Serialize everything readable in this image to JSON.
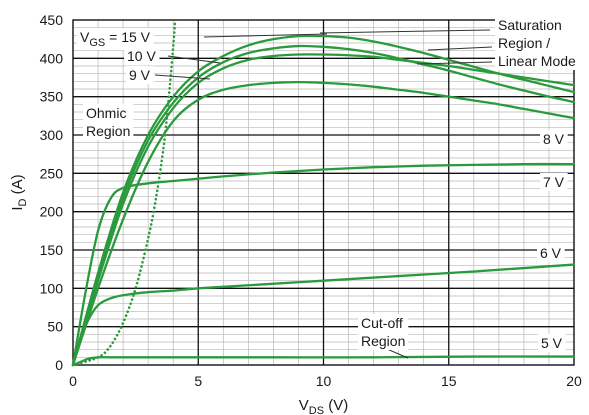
{
  "chart_data": {
    "type": "line",
    "title": "",
    "xlabel": {
      "main": "V",
      "sub": "DS",
      "unit": " (V)"
    },
    "ylabel": {
      "main": "I",
      "sub": "D",
      "unit": " (A)"
    },
    "xlim": [
      0,
      20
    ],
    "ylim": [
      0,
      450
    ],
    "xticks": [
      0,
      5,
      10,
      15,
      20
    ],
    "yticks": [
      0,
      50,
      100,
      150,
      200,
      250,
      300,
      350,
      400,
      450
    ],
    "grid": true,
    "colors": {
      "curve": "#2a9a3c",
      "grid_major": "#111111",
      "grid_minor": "#b8b8b8"
    },
    "series": [
      {
        "name": "15 V",
        "x": [
          0,
          1,
          2,
          3,
          4,
          5,
          6,
          7,
          8,
          9,
          10,
          11,
          12,
          13,
          14,
          15,
          16,
          17,
          18,
          19,
          20
        ],
        "y": [
          0,
          120,
          225,
          300,
          350,
          383,
          403,
          417,
          425,
          429,
          429,
          427,
          422,
          415,
          407,
          398,
          389,
          380,
          372,
          364,
          356
        ]
      },
      {
        "name": "10 V",
        "x": [
          0,
          1,
          2,
          3,
          4,
          5,
          6,
          7,
          8,
          9,
          10,
          11,
          12,
          13,
          14,
          15,
          16,
          17,
          18,
          19,
          20
        ],
        "y": [
          0,
          115,
          218,
          293,
          342,
          375,
          395,
          407,
          413,
          416,
          415,
          412,
          407,
          400,
          392,
          384,
          375,
          366,
          358,
          350,
          343
        ]
      },
      {
        "name": "9 V",
        "x": [
          0,
          1,
          2,
          3,
          4,
          5,
          6,
          7,
          8,
          9,
          10,
          11,
          12,
          13,
          14,
          15,
          16,
          17,
          18,
          19,
          20
        ],
        "y": [
          0,
          110,
          210,
          285,
          335,
          368,
          387,
          398,
          403,
          405,
          405,
          404,
          402,
          398,
          394,
          390,
          385,
          380,
          375,
          370,
          365
        ]
      },
      {
        "name": "8 V",
        "x": [
          0,
          1,
          2,
          3,
          4,
          5,
          6,
          7,
          8,
          9,
          10,
          11,
          12,
          13,
          14,
          15,
          16,
          17,
          18,
          19,
          20
        ],
        "y": [
          0,
          100,
          190,
          265,
          318,
          346,
          359,
          365,
          368,
          369,
          368,
          366,
          363,
          359,
          355,
          350,
          345,
          340,
          334,
          328,
          322
        ]
      },
      {
        "name": "7 V",
        "x": [
          0,
          0.5,
          1,
          1.5,
          2,
          3,
          4,
          5,
          6,
          8,
          10,
          12,
          14,
          16,
          18,
          20
        ],
        "y": [
          0,
          95,
          175,
          217,
          231,
          237,
          240,
          243,
          246,
          251,
          255,
          258,
          260,
          261,
          262,
          262
        ]
      },
      {
        "name": "6 V",
        "x": [
          0,
          0.3,
          0.6,
          1,
          1.5,
          2,
          3,
          4,
          5,
          7,
          10,
          13,
          16,
          20
        ],
        "y": [
          0,
          32,
          58,
          78,
          87,
          91,
          95,
          97,
          100,
          104,
          110,
          116,
          122,
          131
        ]
      },
      {
        "name": "5 V",
        "x": [
          0,
          0.3,
          0.6,
          1,
          1.5,
          2,
          4,
          8,
          12,
          16,
          20
        ],
        "y": [
          0,
          4,
          8,
          10,
          10,
          10,
          10,
          10,
          10,
          11,
          11
        ]
      }
    ],
    "boundary": {
      "x": [
        0,
        1,
        1.5,
        2,
        2.5,
        3,
        3.3,
        3.6,
        3.8,
        4.0,
        4.08
      ],
      "y": [
        0,
        10,
        25,
        55,
        100,
        165,
        215,
        280,
        340,
        415,
        450
      ]
    },
    "curve_labels": [
      {
        "prefix": "V",
        "sub": "GS",
        "text": " = 15 V",
        "series": "15 V"
      },
      {
        "text": "10 V",
        "series": "10 V"
      },
      {
        "text": "9 V",
        "series": "9 V"
      },
      {
        "text": "8 V",
        "series": "8 V"
      },
      {
        "text": "7 V",
        "series": "7 V"
      },
      {
        "text": "6 V",
        "series": "6 V"
      },
      {
        "text": "5 V",
        "series": "5 V"
      }
    ],
    "regions": {
      "ohmic": [
        "Ohmic",
        "Region"
      ],
      "cutoff": [
        "Cut-off",
        "Region"
      ],
      "saturation": [
        "Saturation",
        "Region /",
        "Linear Mode"
      ]
    }
  }
}
